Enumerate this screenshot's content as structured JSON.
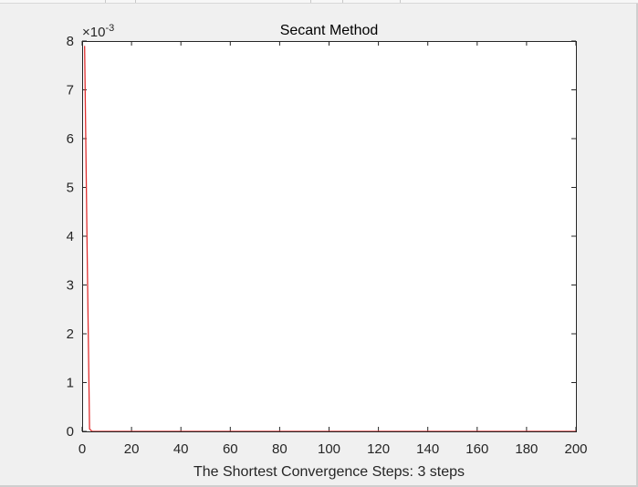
{
  "chart_data": {
    "type": "line",
    "title": "Secant Method",
    "xlabel": "The Shortest Convergence Steps: 3 steps",
    "ylabel": "",
    "xlim": [
      0,
      200
    ],
    "ylim": [
      0,
      8
    ],
    "xticks": [
      "0",
      "20",
      "40",
      "60",
      "80",
      "100",
      "120",
      "140",
      "160",
      "180",
      "200"
    ],
    "yticks": [
      "0",
      "1",
      "2",
      "3",
      "4",
      "5",
      "6",
      "7",
      "8"
    ],
    "y_exponent_label": "×10",
    "y_exponent_power": "-3",
    "y_scale_multiplier": 0.001,
    "grid": false,
    "series": [
      {
        "color": "#e03030",
        "x": [
          1,
          2,
          3,
          4,
          5,
          10,
          20,
          50,
          100,
          150,
          200
        ],
        "y": [
          7.9,
          3.8,
          0.05,
          0,
          0,
          0,
          0,
          0,
          0,
          0,
          0
        ]
      }
    ]
  }
}
